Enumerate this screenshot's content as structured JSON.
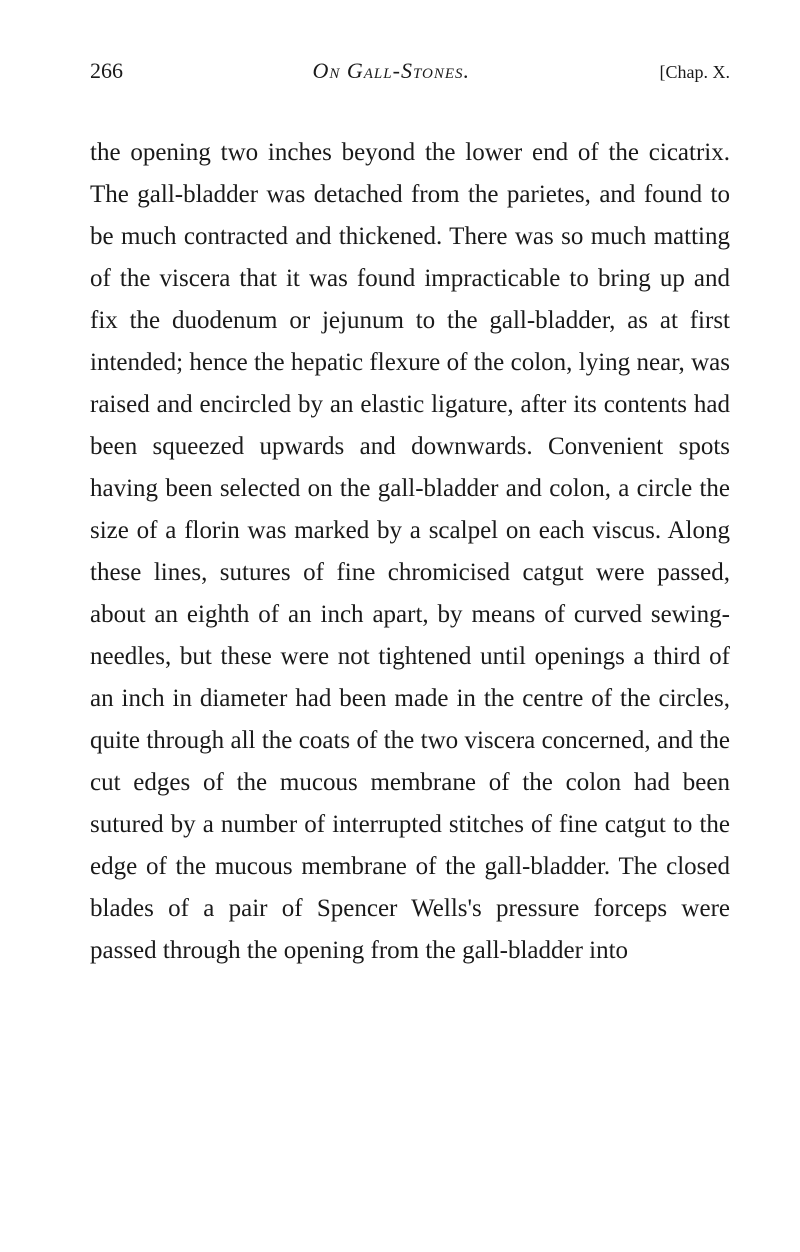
{
  "header": {
    "page_number": "266",
    "title": "On Gall-Stones.",
    "chapter": "[Chap. X."
  },
  "body": {
    "text": "the opening two inches beyond the lower end of the cicatrix. The gall-bladder was detached from the parietes, and found to be much con­tracted and thickened. There was so much matting of the viscera that it was found imprac­ticable to bring up and fix the duodenum or jejunum to the gall-bladder, as at first intended; hence the hepatic flexure of the colon, lying near, was raised and encircled by an elastic ligature, after its contents had been squeezed upwards and downwards. Convenient spots having been selected on the gall-bladder and colon, a circle the size of a florin was marked by a scalpel on each viscus. Along these lines, sutures of fine chromicised catgut were passed, about an eighth of an inch apart, by means of curved sewing-needles, but these were not tightened until openings a third of an inch in diameter had been made in the centre of the circles, quite through all the coats of the two viscera concerned, and the cut edges of the mucous membrane of the colon had been sutured by a number of interrupted stitches of fine catgut to the edge of the mucous membrane of the gall-bladder. The closed blades of a pair of Spencer Wells's pressure forceps were passed through the opening from the gall-bladder into"
  },
  "colors": {
    "background": "#ffffff",
    "text": "#1a1a1a"
  },
  "typography": {
    "body_fontsize": 25,
    "header_fontsize": 22,
    "chapter_fontsize": 18,
    "line_height": 1.68,
    "font_family": "Georgia, serif"
  }
}
